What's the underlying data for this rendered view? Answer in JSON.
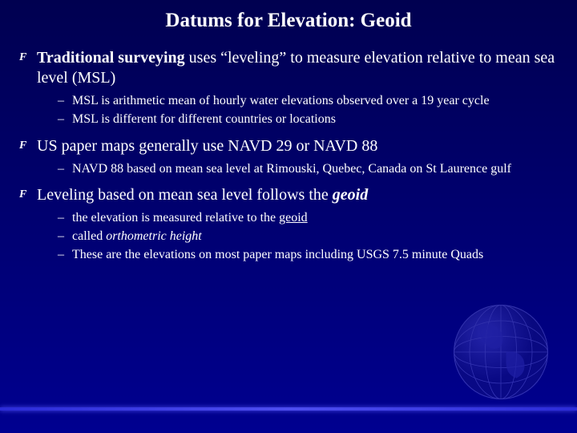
{
  "title": "Datums for Elevation: Geoid",
  "bullet_glyph": "F",
  "dash_glyph": "–",
  "items": [
    {
      "main_html": "<span class='bold'>Traditional surveying</span> uses &ldquo;leveling&rdquo; to measure elevation relative to mean sea level (MSL)",
      "subs": [
        "MSL is arithmetic mean of hourly water elevations observed over a  19 year cycle",
        "MSL is different for different countries or locations"
      ]
    },
    {
      "main_html": "US paper maps generally use NAVD 29 or NAVD 88",
      "subs": [
        "NAVD 88 based on mean sea level at Rimouski, Quebec, Canada on St Laurence gulf"
      ]
    },
    {
      "main_html": "Leveling based on mean sea level follows the <span class='ital'>geoid</span>",
      "subs": [
        "the elevation is measured  relative to the <span class='under'>geoid</span>",
        "called <span class='ital'>orthometric height</span>",
        "These are the elevations on most paper maps including USGS 7.5 minute Quads"
      ]
    }
  ],
  "colors": {
    "bg_top": "#000050",
    "bg_bottom": "#000090",
    "text": "#ffffff",
    "footer_line": "#4d4df0"
  }
}
